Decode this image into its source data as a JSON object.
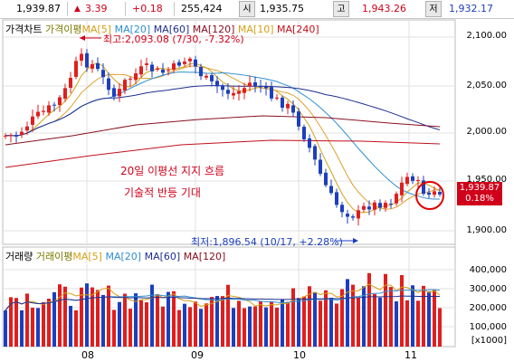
{
  "topbar": {
    "price": "1,939.87",
    "change": "3.39",
    "change_pct": "+0.18",
    "volume": "255,424",
    "open_label": "시",
    "open": "1,935.75",
    "high_label": "고",
    "high": "1,943.26",
    "low_label": "저",
    "low": "1,932.17"
  },
  "legend": {
    "price_chart": "가격차트",
    "ma_group": "가격이평",
    "ma5": "MA[5]",
    "ma20": "MA[20]",
    "ma60": "MA[60]",
    "ma120": "MA[120]",
    "ma10": "MA[10]",
    "ma240": "MA[240]"
  },
  "volume_legend": {
    "volume": "거래량",
    "ma_group": "거래이평",
    "ma5": "MA[5]",
    "ma20": "MA[20]",
    "ma60": "MA[60]",
    "ma120": "MA[120]"
  },
  "annotations": {
    "high": "최고:2,093.08 (7/30, -7.32%)",
    "low": "최저:1,896.54 (10/17, +2.28%)",
    "note1": "20일 이평선 지지 흐름",
    "note2": "기술적 반등 기대"
  },
  "current": {
    "price": "1,939.87",
    "pct": "0.18%"
  },
  "price_axis": [
    "2,100.00",
    "2,050.00",
    "2,000.00",
    "1,950.00",
    "1,900.00"
  ],
  "volume_axis": [
    "400,000",
    "300,000",
    "200,000",
    "100,000",
    "[x1000]"
  ],
  "months": [
    "08",
    "09",
    "10",
    "11"
  ],
  "colors": {
    "up": "#e01e1e",
    "down": "#1b3fbf",
    "ma5": "#d4a017",
    "ma20": "#2f8fd0",
    "ma60": "#1f2f8f",
    "ma120": "#8a1020",
    "ma240": "#c0101a"
  }
}
